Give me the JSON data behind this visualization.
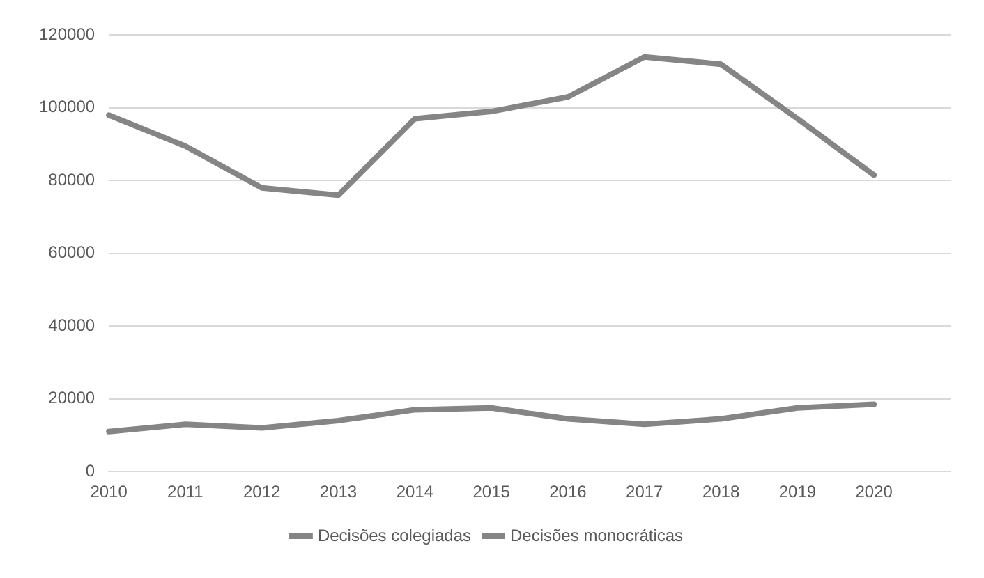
{
  "chart_data": {
    "type": "line",
    "categories": [
      "2010",
      "2011",
      "2012",
      "2013",
      "2014",
      "2015",
      "2016",
      "2017",
      "2018",
      "2019",
      "2020",
      null
    ],
    "series": [
      {
        "name": "Decisões colegiadas",
        "color": "#858585",
        "values": [
          98000,
          89500,
          78000,
          76000,
          97000,
          99000,
          103000,
          114000,
          112000,
          97000,
          81500,
          null
        ]
      },
      {
        "name": "Decisões monocráticas",
        "color": "#858585",
        "values": [
          11000,
          13000,
          12000,
          14000,
          17000,
          17500,
          14500,
          13000,
          14500,
          17500,
          18500,
          null
        ]
      }
    ],
    "ylim": [
      0,
      120000
    ],
    "yticks": [
      0,
      20000,
      40000,
      60000,
      80000,
      100000,
      120000
    ],
    "grid": "y",
    "legend": "bottom",
    "marker": "none",
    "line_style": "solid"
  }
}
